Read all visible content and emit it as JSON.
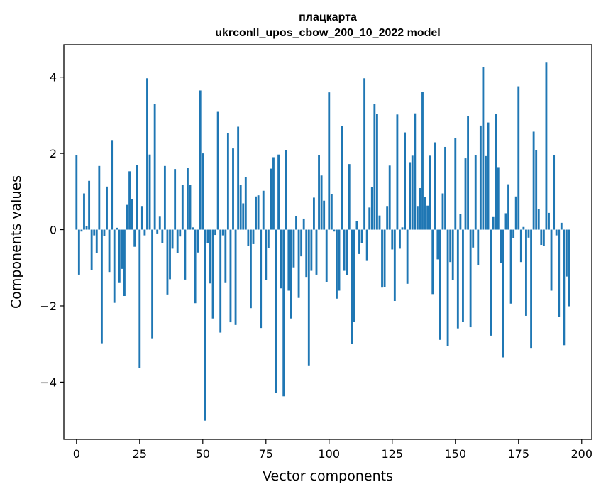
{
  "chart_data": {
    "type": "bar",
    "title": "плацкарта",
    "subtitle": "ukrconll_upos_cbow_200_10_2022 model",
    "xlabel": "Vector components",
    "ylabel": "Components values",
    "xlim": [
      -5,
      204
    ],
    "ylim": [
      -5.5,
      4.85
    ],
    "xticks": [
      0,
      25,
      50,
      75,
      100,
      125,
      150,
      175,
      200
    ],
    "yticks": [
      -4,
      -2,
      0,
      2,
      4
    ],
    "bar_color": "#1f77b4",
    "grid": false,
    "values": [
      1.95,
      -1.18,
      -0.05,
      0.95,
      0.1,
      1.28,
      -1.06,
      -0.15,
      -0.62,
      1.67,
      -2.98,
      -0.17,
      1.13,
      -1.11,
      2.35,
      -1.92,
      0.05,
      -1.4,
      -1.03,
      -1.74,
      0.65,
      1.53,
      0.8,
      -0.45,
      1.7,
      -3.63,
      0.62,
      -0.15,
      3.97,
      1.97,
      -2.85,
      3.3,
      -0.1,
      0.34,
      -0.35,
      1.67,
      -1.7,
      -1.3,
      -0.5,
      1.59,
      -0.62,
      -0.18,
      1.17,
      -1.31,
      1.62,
      1.18,
      0.06,
      -1.93,
      -0.6,
      3.65,
      2.0,
      -5.01,
      -0.35,
      -1.41,
      -2.33,
      -0.14,
      3.09,
      -2.7,
      -0.15,
      -1.4,
      2.53,
      -2.43,
      2.13,
      -2.5,
      2.7,
      1.17,
      0.69,
      1.37,
      -0.42,
      -2.06,
      -0.38,
      0.87,
      0.9,
      -2.58,
      1.02,
      -1.33,
      -0.48,
      1.6,
      1.9,
      -4.29,
      1.97,
      -1.54,
      -4.37,
      2.08,
      -1.6,
      -2.33,
      -0.99,
      0.36,
      -1.79,
      -0.7,
      0.29,
      -1.24,
      -3.56,
      -1.08,
      0.84,
      -1.18,
      1.95,
      1.42,
      0.76,
      -1.38,
      3.6,
      0.94,
      -0.05,
      -1.81,
      -1.6,
      2.71,
      -1.08,
      -1.2,
      1.72,
      -2.99,
      -2.42,
      0.23,
      -0.64,
      -0.36,
      3.97,
      -0.82,
      0.58,
      1.12,
      3.3,
      3.03,
      0.37,
      -1.52,
      -1.5,
      0.62,
      1.68,
      -0.52,
      -1.87,
      3.02,
      -0.5,
      0.06,
      2.55,
      -1.42,
      1.77,
      1.94,
      3.05,
      0.62,
      1.09,
      3.62,
      0.86,
      0.63,
      1.94,
      -1.69,
      2.29,
      -0.78,
      -2.89,
      0.95,
      2.17,
      -3.06,
      -0.85,
      -1.33,
      2.4,
      -2.59,
      0.41,
      -2.41,
      1.87,
      2.98,
      -2.56,
      -0.47,
      1.95,
      -0.93,
      2.73,
      4.27,
      1.93,
      2.81,
      -2.78,
      0.33,
      3.03,
      1.64,
      -0.88,
      -3.35,
      0.43,
      1.19,
      -1.94,
      -0.23,
      0.87,
      3.76,
      -0.85,
      0.07,
      -2.26,
      -0.21,
      -3.12,
      2.57,
      2.09,
      0.54,
      -0.4,
      -0.42,
      4.38,
      0.44,
      -1.6,
      1.95,
      -0.15,
      -2.28,
      0.18,
      -3.03,
      -1.23,
      -2.01
    ]
  }
}
